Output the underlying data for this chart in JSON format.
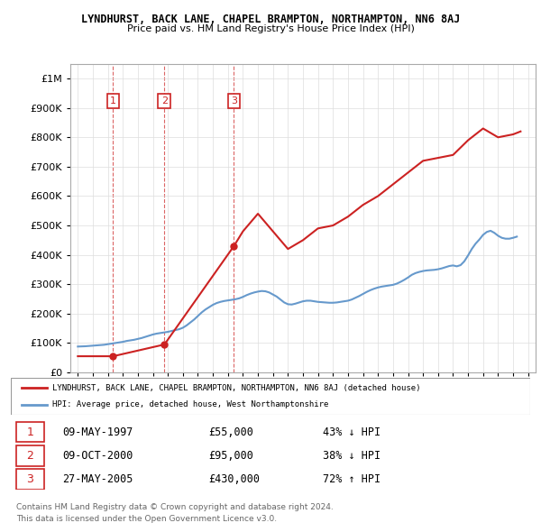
{
  "title": "LYNDHURST, BACK LANE, CHAPEL BRAMPTON, NORTHAMPTON, NN6 8AJ",
  "subtitle": "Price paid vs. HM Land Registry's House Price Index (HPI)",
  "legend_line1": "LYNDHURST, BACK LANE, CHAPEL BRAMPTON, NORTHAMPTON, NN6 8AJ (detached house)",
  "legend_line2": "HPI: Average price, detached house, West Northamptonshire",
  "footer1": "Contains HM Land Registry data © Crown copyright and database right 2024.",
  "footer2": "This data is licensed under the Open Government Licence v3.0.",
  "transactions": [
    {
      "num": 1,
      "date": "09-MAY-1997",
      "price": 55000,
      "hpi_rel": "43% ↓ HPI",
      "x": 1997.35
    },
    {
      "num": 2,
      "date": "09-OCT-2000",
      "price": 95000,
      "hpi_rel": "38% ↓ HPI",
      "x": 2000.77
    },
    {
      "num": 3,
      "date": "27-MAY-2005",
      "price": 430000,
      "hpi_rel": "72% ↑ HPI",
      "x": 2005.4
    }
  ],
  "hpi_color": "#6699cc",
  "price_color": "#cc2222",
  "dashed_color": "#cc2222",
  "ylim": [
    0,
    1050000
  ],
  "xlim": [
    1994.5,
    2025.5
  ],
  "yticks": [
    0,
    100000,
    200000,
    300000,
    400000,
    500000,
    600000,
    700000,
    800000,
    900000,
    1000000
  ],
  "ytick_labels": [
    "£0",
    "£100K",
    "£200K",
    "£300K",
    "£400K",
    "£500K",
    "£600K",
    "£700K",
    "£800K",
    "£900K",
    "£1M"
  ],
  "hpi_data": {
    "years": [
      1995,
      1995.25,
      1995.5,
      1995.75,
      1996,
      1996.25,
      1996.5,
      1996.75,
      1997,
      1997.25,
      1997.5,
      1997.75,
      1998,
      1998.25,
      1998.5,
      1998.75,
      1999,
      1999.25,
      1999.5,
      1999.75,
      2000,
      2000.25,
      2000.5,
      2000.75,
      2001,
      2001.25,
      2001.5,
      2001.75,
      2002,
      2002.25,
      2002.5,
      2002.75,
      2003,
      2003.25,
      2003.5,
      2003.75,
      2004,
      2004.25,
      2004.5,
      2004.75,
      2005,
      2005.25,
      2005.5,
      2005.75,
      2006,
      2006.25,
      2006.5,
      2006.75,
      2007,
      2007.25,
      2007.5,
      2007.75,
      2008,
      2008.25,
      2008.5,
      2008.75,
      2009,
      2009.25,
      2009.5,
      2009.75,
      2010,
      2010.25,
      2010.5,
      2010.75,
      2011,
      2011.25,
      2011.5,
      2011.75,
      2012,
      2012.25,
      2012.5,
      2012.75,
      2013,
      2013.25,
      2013.5,
      2013.75,
      2014,
      2014.25,
      2014.5,
      2014.75,
      2015,
      2015.25,
      2015.5,
      2015.75,
      2016,
      2016.25,
      2016.5,
      2016.75,
      2017,
      2017.25,
      2017.5,
      2017.75,
      2018,
      2018.25,
      2018.5,
      2018.75,
      2019,
      2019.25,
      2019.5,
      2019.75,
      2020,
      2020.25,
      2020.5,
      2020.75,
      2021,
      2021.25,
      2021.5,
      2021.75,
      2022,
      2022.25,
      2022.5,
      2022.75,
      2023,
      2023.25,
      2023.5,
      2023.75,
      2024,
      2024.25
    ],
    "values": [
      88000,
      88500,
      89000,
      90000,
      91000,
      92000,
      93000,
      94000,
      96000,
      98000,
      100000,
      102000,
      104000,
      107000,
      109000,
      111000,
      114000,
      117000,
      121000,
      125000,
      129000,
      132000,
      134000,
      136000,
      138000,
      141000,
      144000,
      147000,
      152000,
      160000,
      170000,
      180000,
      192000,
      204000,
      214000,
      222000,
      230000,
      236000,
      240000,
      243000,
      245000,
      247000,
      249000,
      252000,
      257000,
      263000,
      268000,
      272000,
      275000,
      277000,
      276000,
      272000,
      265000,
      258000,
      248000,
      238000,
      232000,
      231000,
      234000,
      238000,
      242000,
      244000,
      244000,
      242000,
      240000,
      239000,
      238000,
      237000,
      237000,
      238000,
      240000,
      242000,
      244000,
      248000,
      254000,
      260000,
      267000,
      274000,
      280000,
      285000,
      289000,
      292000,
      294000,
      296000,
      298000,
      302000,
      308000,
      315000,
      323000,
      332000,
      338000,
      342000,
      345000,
      347000,
      348000,
      349000,
      351000,
      354000,
      358000,
      362000,
      364000,
      361000,
      365000,
      378000,
      398000,
      420000,
      438000,
      452000,
      468000,
      478000,
      482000,
      475000,
      465000,
      458000,
      455000,
      455000,
      458000,
      462000
    ]
  },
  "price_line_data": {
    "years": [
      1995,
      1997.35,
      2000.77,
      2005.4,
      2006,
      2007,
      2008,
      2009,
      2010,
      2011,
      2012,
      2013,
      2014,
      2015,
      2016,
      2017,
      2018,
      2019,
      2020,
      2021,
      2022,
      2023,
      2024,
      2024.5
    ],
    "values": [
      55000,
      55000,
      95000,
      430000,
      480000,
      540000,
      480000,
      420000,
      450000,
      490000,
      500000,
      530000,
      570000,
      600000,
      640000,
      680000,
      720000,
      730000,
      740000,
      790000,
      830000,
      800000,
      810000,
      820000
    ]
  }
}
